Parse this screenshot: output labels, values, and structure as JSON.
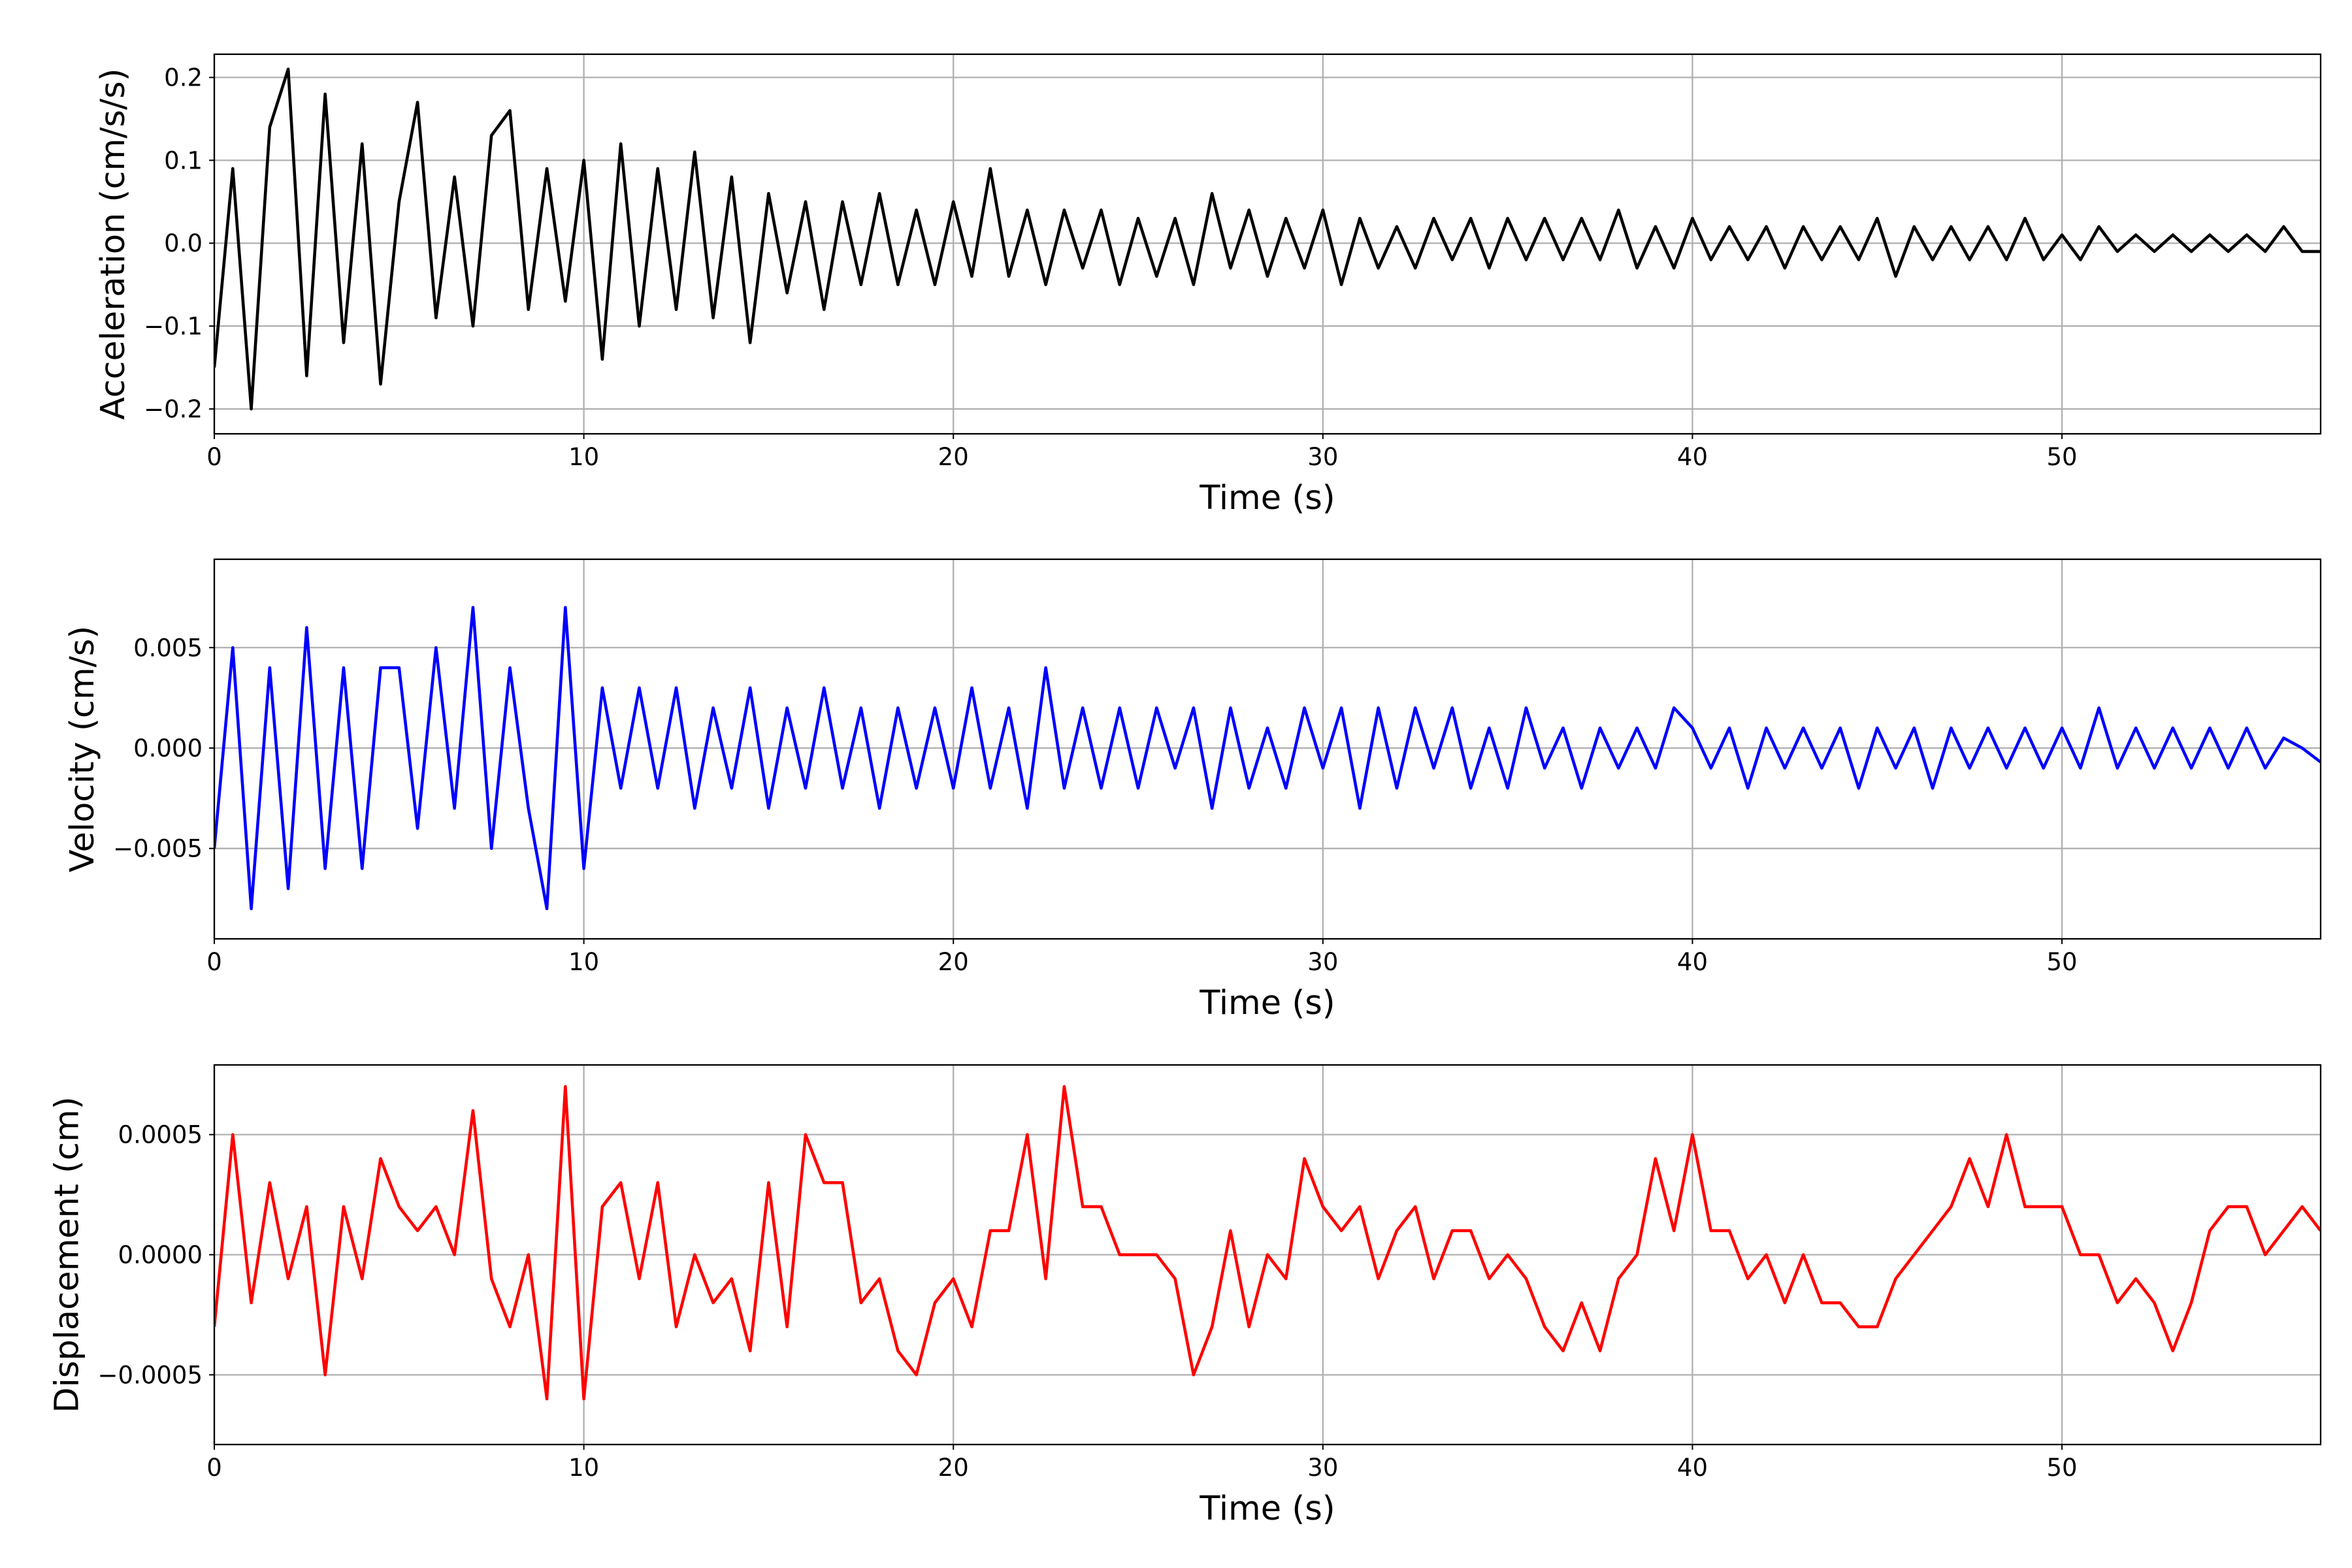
{
  "chart_data": [
    {
      "type": "line",
      "ylabel": "Acceleration (cm/s/s)",
      "xlabel": "Time (s)",
      "color": "#000000",
      "grid": true,
      "xlim": [
        0,
        57
      ],
      "xticks": [
        0,
        10,
        20,
        30,
        40,
        50
      ],
      "ylim": [
        -0.23,
        0.228
      ],
      "yticks": [
        {
          "value": -0.2,
          "label": "−0.2"
        },
        {
          "value": -0.1,
          "label": "−0.1"
        },
        {
          "value": 0,
          "label": "0.0"
        },
        0.1,
        0.2
      ],
      "x": [
        0,
        0.5,
        1,
        1.5,
        2,
        2.5,
        3,
        3.5,
        4,
        4.5,
        5,
        5.5,
        6,
        6.5,
        7,
        7.5,
        8,
        8.5,
        9,
        9.5,
        10,
        10.5,
        11,
        11.5,
        12,
        12.5,
        13,
        13.5,
        14,
        14.5,
        15,
        15.5,
        16,
        16.5,
        17,
        17.5,
        18,
        18.5,
        19,
        19.5,
        20,
        20.5,
        21,
        21.5,
        22,
        22.5,
        23,
        23.5,
        24,
        24.5,
        25,
        25.5,
        26,
        26.5,
        27,
        27.5,
        28,
        28.5,
        29,
        29.5,
        30,
        30.5,
        31,
        31.5,
        32,
        32.5,
        33,
        33.5,
        34,
        34.5,
        35,
        35.5,
        36,
        36.5,
        37,
        37.5,
        38,
        38.5,
        39,
        39.5,
        40,
        40.5,
        41,
        41.5,
        42,
        42.5,
        43,
        43.5,
        44,
        44.5,
        45,
        45.5,
        46,
        46.5,
        47,
        47.5,
        48,
        48.5,
        49,
        49.5,
        50,
        50.5,
        51,
        51.5,
        52,
        52.5,
        53,
        53.5,
        54,
        54.5,
        55,
        55.5,
        56,
        56.5,
        57
      ],
      "values": [
        -0.15,
        0.09,
        -0.2,
        0.14,
        0.21,
        -0.16,
        0.18,
        -0.12,
        0.12,
        -0.17,
        0.05,
        0.17,
        -0.09,
        0.08,
        -0.1,
        0.13,
        0.16,
        -0.08,
        0.09,
        -0.07,
        0.1,
        -0.14,
        0.12,
        -0.1,
        0.09,
        -0.08,
        0.11,
        -0.09,
        0.08,
        -0.12,
        0.06,
        -0.06,
        0.05,
        -0.08,
        0.05,
        -0.05,
        0.06,
        -0.05,
        0.04,
        -0.05,
        0.05,
        -0.04,
        0.09,
        -0.04,
        0.04,
        -0.05,
        0.04,
        -0.03,
        0.04,
        -0.05,
        0.03,
        -0.04,
        0.03,
        -0.05,
        0.06,
        -0.03,
        0.04,
        -0.04,
        0.03,
        -0.03,
        0.04,
        -0.05,
        0.03,
        -0.03,
        0.02,
        -0.03,
        0.03,
        -0.02,
        0.03,
        -0.03,
        0.03,
        -0.02,
        0.03,
        -0.02,
        0.03,
        -0.02,
        0.04,
        -0.03,
        0.02,
        -0.03,
        0.03,
        -0.02,
        0.02,
        -0.02,
        0.02,
        -0.03,
        0.02,
        -0.02,
        0.02,
        -0.02,
        0.03,
        -0.04,
        0.02,
        -0.02,
        0.02,
        -0.02,
        0.02,
        -0.02,
        0.03,
        -0.02,
        0.01,
        -0.02,
        0.02,
        -0.01,
        0.01,
        -0.01,
        0.01,
        -0.01,
        0.01,
        -0.01,
        0.01,
        -0.01,
        0.02,
        -0.01,
        -0.01
      ]
    },
    {
      "type": "line",
      "ylabel": "Velocity (cm/s)",
      "xlabel": "Time (s)",
      "color": "#0000ff",
      "grid": true,
      "xlim": [
        0,
        57
      ],
      "xticks": [
        0,
        10,
        20,
        30,
        40,
        50
      ],
      "ylim": [
        -0.0095,
        0.0094
      ],
      "yticks": [
        {
          "value": -0.005,
          "label": "−0.005"
        },
        {
          "value": 0,
          "label": "0.000"
        },
        0.005
      ],
      "x": [
        0,
        0.5,
        1,
        1.5,
        2,
        2.5,
        3,
        3.5,
        4,
        4.5,
        5,
        5.5,
        6,
        6.5,
        7,
        7.5,
        8,
        8.5,
        9,
        9.5,
        10,
        10.5,
        11,
        11.5,
        12,
        12.5,
        13,
        13.5,
        14,
        14.5,
        15,
        15.5,
        16,
        16.5,
        17,
        17.5,
        18,
        18.5,
        19,
        19.5,
        20,
        20.5,
        21,
        21.5,
        22,
        22.5,
        23,
        23.5,
        24,
        24.5,
        25,
        25.5,
        26,
        26.5,
        27,
        27.5,
        28,
        28.5,
        29,
        29.5,
        30,
        30.5,
        31,
        31.5,
        32,
        32.5,
        33,
        33.5,
        34,
        34.5,
        35,
        35.5,
        36,
        36.5,
        37,
        37.5,
        38,
        38.5,
        39,
        39.5,
        40,
        40.5,
        41,
        41.5,
        42,
        42.5,
        43,
        43.5,
        44,
        44.5,
        45,
        45.5,
        46,
        46.5,
        47,
        47.5,
        48,
        48.5,
        49,
        49.5,
        50,
        50.5,
        51,
        51.5,
        52,
        52.5,
        53,
        53.5,
        54,
        54.5,
        55,
        55.5,
        56,
        56.5,
        57
      ],
      "values": [
        -0.005,
        0.005,
        -0.008,
        0.004,
        -0.007,
        0.006,
        -0.006,
        0.004,
        -0.006,
        0.004,
        0.004,
        -0.004,
        0.005,
        -0.003,
        0.007,
        -0.005,
        0.004,
        -0.003,
        -0.008,
        0.007,
        -0.006,
        0.003,
        -0.002,
        0.003,
        -0.002,
        0.003,
        -0.003,
        0.002,
        -0.002,
        0.003,
        -0.003,
        0.002,
        -0.002,
        0.003,
        -0.002,
        0.002,
        -0.003,
        0.002,
        -0.002,
        0.002,
        -0.002,
        0.003,
        -0.002,
        0.002,
        -0.003,
        0.004,
        -0.002,
        0.002,
        -0.002,
        0.002,
        -0.002,
        0.002,
        -0.001,
        0.002,
        -0.003,
        0.002,
        -0.002,
        0.001,
        -0.002,
        0.002,
        -0.001,
        0.002,
        -0.003,
        0.002,
        -0.002,
        0.002,
        -0.001,
        0.002,
        -0.002,
        0.001,
        -0.002,
        0.002,
        -0.001,
        0.001,
        -0.002,
        0.001,
        -0.001,
        0.001,
        -0.001,
        0.002,
        0.001,
        -0.001,
        0.001,
        -0.002,
        0.001,
        -0.001,
        0.001,
        -0.001,
        0.001,
        -0.002,
        0.001,
        -0.001,
        0.001,
        -0.002,
        0.001,
        -0.001,
        0.001,
        -0.001,
        0.001,
        -0.001,
        0.001,
        -0.001,
        0.002,
        -0.001,
        0.001,
        -0.001,
        0.001,
        -0.001,
        0.001,
        -0.001,
        0.001,
        -0.001,
        0.0005,
        0,
        -0.0007
      ]
    },
    {
      "type": "line",
      "ylabel": "Displacement (cm)",
      "xlabel": "Time (s)",
      "color": "#ff0000",
      "grid": true,
      "xlim": [
        0,
        57
      ],
      "xticks": [
        0,
        10,
        20,
        30,
        40,
        50
      ],
      "ylim": [
        -0.00079,
        0.00079
      ],
      "yticks": [
        {
          "value": -0.0005,
          "label": "−0.0005"
        },
        {
          "value": 0,
          "label": "0.0000"
        },
        0.0005
      ],
      "x": [
        0,
        0.5,
        1,
        1.5,
        2,
        2.5,
        3,
        3.5,
        4,
        4.5,
        5,
        5.5,
        6,
        6.5,
        7,
        7.5,
        8,
        8.5,
        9,
        9.5,
        10,
        10.5,
        11,
        11.5,
        12,
        12.5,
        13,
        13.5,
        14,
        14.5,
        15,
        15.5,
        16,
        16.5,
        17,
        17.5,
        18,
        18.5,
        19,
        19.5,
        20,
        20.5,
        21,
        21.5,
        22,
        22.5,
        23,
        23.5,
        24,
        24.5,
        25,
        25.5,
        26,
        26.5,
        27,
        27.5,
        28,
        28.5,
        29,
        29.5,
        30,
        30.5,
        31,
        31.5,
        32,
        32.5,
        33,
        33.5,
        34,
        34.5,
        35,
        35.5,
        36,
        36.5,
        37,
        37.5,
        38,
        38.5,
        39,
        39.5,
        40,
        40.5,
        41,
        41.5,
        42,
        42.5,
        43,
        43.5,
        44,
        44.5,
        45,
        45.5,
        46,
        46.5,
        47,
        47.5,
        48,
        48.5,
        49,
        49.5,
        50,
        50.5,
        51,
        51.5,
        52,
        52.5,
        53,
        53.5,
        54,
        54.5,
        55,
        55.5,
        56,
        56.5,
        57
      ],
      "values": [
        -0.0003,
        0.0005,
        -0.0002,
        0.0003,
        -0.0001,
        0.0002,
        -0.0005,
        0.0002,
        -0.0001,
        0.0004,
        0.0002,
        0.0001,
        0.0002,
        0,
        0.0006,
        -0.0001,
        -0.0003,
        0,
        -0.0006,
        0.0007,
        -0.0006,
        0.0002,
        0.0003,
        -0.0001,
        0.0003,
        -0.0003,
        0,
        -0.0002,
        -0.0001,
        -0.0004,
        0.0003,
        -0.0003,
        0.0005,
        0.0003,
        0.0003,
        -0.0002,
        -0.0001,
        -0.0004,
        -0.0005,
        -0.0002,
        -0.0001,
        -0.0003,
        0.0001,
        0.0001,
        0.0005,
        -0.0001,
        0.0007,
        0.0002,
        0.0002,
        0,
        0,
        0,
        -0.0001,
        -0.0005,
        -0.0003,
        0.0001,
        -0.0003,
        0,
        -0.0001,
        0.0004,
        0.0002,
        0.0001,
        0.0002,
        -0.0001,
        0.0001,
        0.0002,
        -0.0001,
        0.0001,
        0.0001,
        -0.0001,
        0,
        -0.0001,
        -0.0003,
        -0.0004,
        -0.0002,
        -0.0004,
        -0.0001,
        0,
        0.0004,
        0.0001,
        0.0005,
        0.0001,
        0.0001,
        -0.0001,
        0,
        -0.0002,
        0,
        -0.0002,
        -0.0002,
        -0.0003,
        -0.0003,
        -0.0001,
        0,
        0.0001,
        0.0002,
        0.0004,
        0.0002,
        0.0005,
        0.0002,
        0.0002,
        0.0002,
        0,
        0,
        -0.0002,
        -0.0001,
        -0.0002,
        -0.0004,
        -0.0002,
        0.0001,
        0.0002,
        0.0002,
        0,
        0.0001,
        0.0002,
        0.0001
      ]
    }
  ]
}
